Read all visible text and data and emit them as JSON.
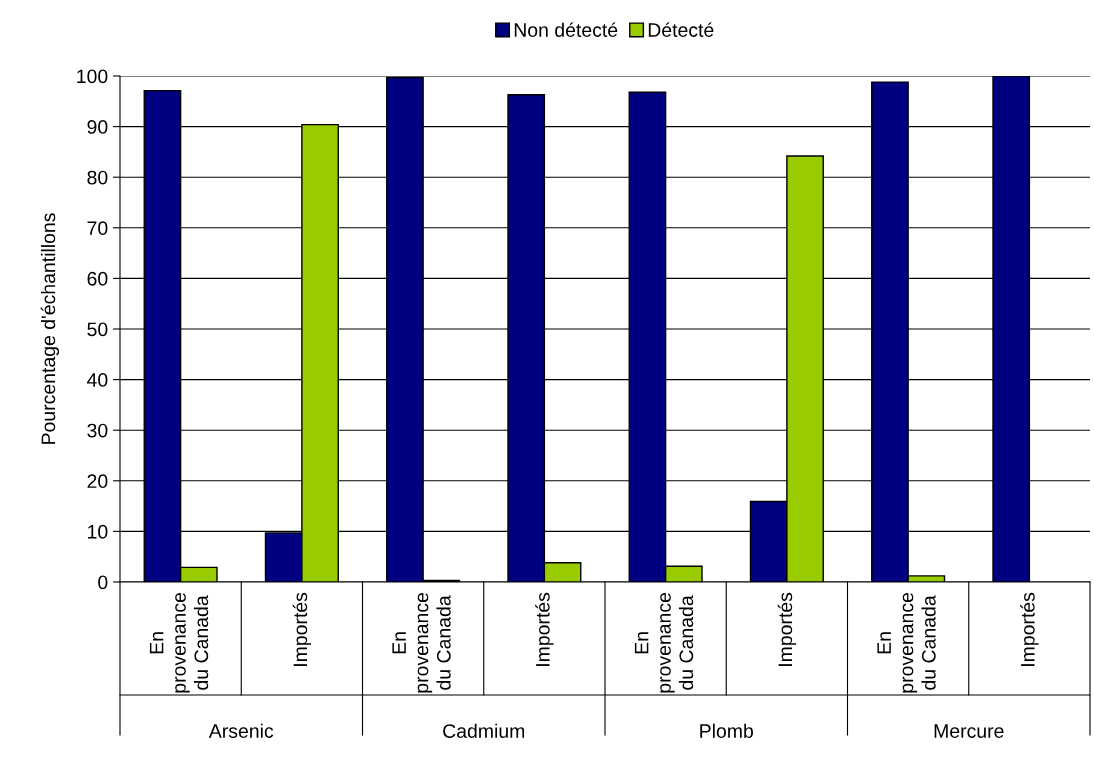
{
  "chart_data": {
    "type": "bar",
    "ylabel": "Pourcentage d'échantillons",
    "categories": [
      "En\nprovenance\ndu Canada",
      "Importés",
      "En\nprovenance\ndu Canada",
      "Importés",
      "En\nprovenance\ndu Canada",
      "Importés",
      "En\nprovenance\ndu Canada",
      "Importés"
    ],
    "series": [
      {
        "name": "Non détecté",
        "color": "#000080",
        "values": [
          97.1,
          9.7,
          99.7,
          96.3,
          96.8,
          15.9,
          98.8,
          100
        ]
      },
      {
        "name": "Détecté",
        "color": "#99cc00",
        "values": [
          2.9,
          90.4,
          0.3,
          3.8,
          3.1,
          84.2,
          1.2,
          null
        ]
      }
    ],
    "annotations": [
      "Arsenic",
      "Cadmium",
      "Plomb",
      "Mercure"
    ],
    "ylim": [
      0,
      100
    ],
    "yticks": [
      0,
      10,
      20,
      30,
      40,
      50,
      60,
      70,
      80,
      90,
      100
    ],
    "grid": "y",
    "legend": "top"
  }
}
